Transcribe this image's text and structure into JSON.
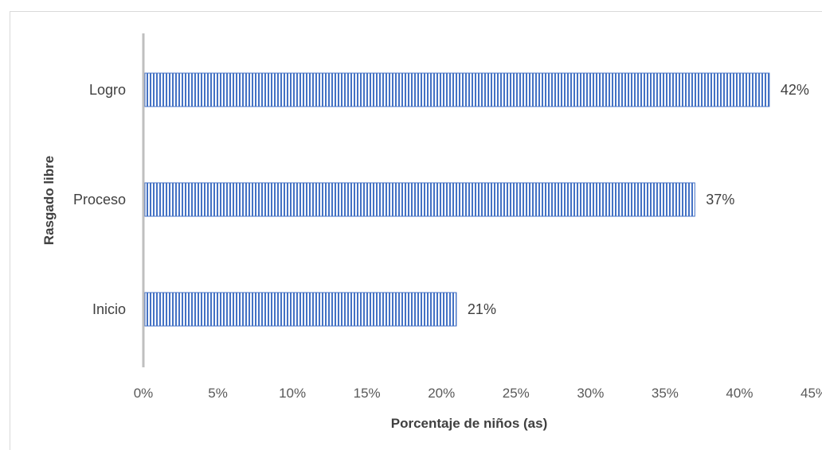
{
  "chart_data": {
    "type": "bar",
    "orientation": "horizontal",
    "categories": [
      "Logro",
      "Proceso",
      "Inicio"
    ],
    "values": [
      42,
      37,
      21
    ],
    "data_labels": [
      "42%",
      "37%",
      "21%"
    ],
    "xlabel": "Porcentaje de niños (as)",
    "ylabel": "Rasgado libre",
    "xlim": [
      0,
      45
    ],
    "x_ticks": [
      "0%",
      "5%",
      "10%",
      "15%",
      "20%",
      "25%",
      "30%",
      "35%",
      "40%",
      "45%"
    ],
    "grid": false,
    "legend": "none",
    "bar_color": "#4472c4",
    "bar_pattern": "vertical-stripes"
  }
}
